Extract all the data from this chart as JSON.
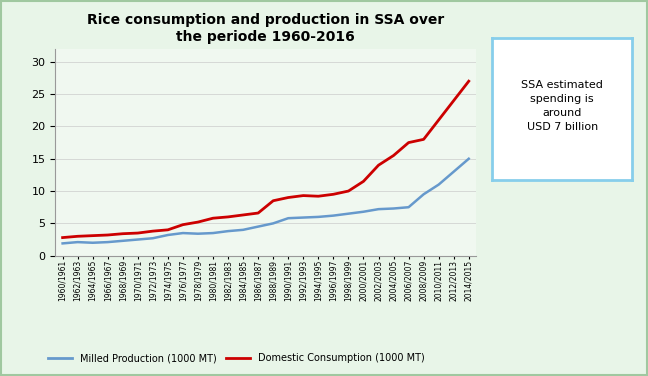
{
  "title": "Rice consumption and production in SSA over\nthe periode 1960-2016",
  "ylim": [
    0,
    32
  ],
  "yticks": [
    0,
    5,
    10,
    15,
    20,
    25,
    30
  ],
  "legend_labels": [
    "Milled Production (1000 MT)",
    "Domestic Consumption (1000 MT)"
  ],
  "production_color": "#6699CC",
  "consumption_color": "#CC0000",
  "arrow_color": "#5A8A2A",
  "annotation_text": "SSA estimated\nspending is\naround\nUSD 7 billion",
  "annotation_box_edge": "#87CEEB",
  "annotation_box_face": "#ffffff",
  "x_labels": [
    "1960/1961",
    "1962/1963",
    "1964/1965",
    "1966/1967",
    "1968/1969",
    "1970/1971",
    "1972/1973",
    "1974/1975",
    "1976/1977",
    "1978/1979",
    "1980/1981",
    "1982/1983",
    "1984/1985",
    "1986/1987",
    "1988/1989",
    "1990/1991",
    "1992/1993",
    "1994/1995",
    "1996/1997",
    "1998/1999",
    "2000/2001",
    "2002/2003",
    "2004/2005",
    "2006/2007",
    "2008/2009",
    "2010/2011",
    "2012/2013",
    "2014/2015"
  ],
  "production_values": [
    1.9,
    2.1,
    2.0,
    2.1,
    2.3,
    2.5,
    2.7,
    3.2,
    3.5,
    3.4,
    3.5,
    3.8,
    4.0,
    4.5,
    5.0,
    5.8,
    5.9,
    6.0,
    6.2,
    6.5,
    6.8,
    7.2,
    7.3,
    7.5,
    9.5,
    11.0,
    13.0,
    15.0
  ],
  "consumption_values": [
    2.8,
    3.0,
    3.1,
    3.2,
    3.4,
    3.5,
    3.8,
    4.0,
    4.8,
    5.2,
    5.8,
    6.0,
    6.3,
    6.6,
    8.5,
    9.0,
    9.3,
    9.2,
    9.5,
    10.0,
    11.5,
    14.0,
    15.5,
    17.5,
    18.0,
    21.0,
    24.0,
    27.0
  ],
  "fig_bg_color": "#E8F5E8",
  "chart_bg_color": "#F0F8F0",
  "border_color": "#B0D0B0"
}
